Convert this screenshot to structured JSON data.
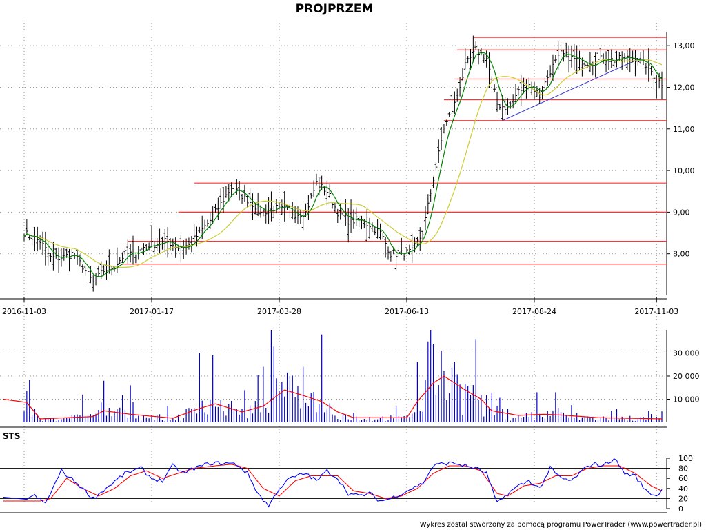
{
  "title": "PROJPRZEM",
  "footer": "Wykres został stworzony za pomocą programu PowerTrader (www.powertrader.pl)",
  "colors": {
    "bars": "#000000",
    "ma_short": "#008000",
    "ma_long": "#cccc33",
    "levels": "#ff3333",
    "trendline": "#3333cc",
    "volume": "#0000cc",
    "volume_avg": "#ff0000",
    "sts_k": "#0000ff",
    "sts_d": "#ff0000"
  },
  "chart_data": [
    {
      "type": "line",
      "panel": "price",
      "ylim": [
        7.0,
        13.6
      ],
      "y_ticks": [
        "8,00",
        "9,00",
        "10,00",
        "11,00",
        "12,00",
        "13,00"
      ],
      "x_ticks": [
        "2016-11-03",
        "2017-01-17",
        "2017-03-28",
        "2017-06-13",
        "2017-08-24",
        "2017-11-03"
      ],
      "close_anchors": [
        [
          0,
          8.5
        ],
        [
          6,
          8.3
        ],
        [
          10,
          7.9
        ],
        [
          14,
          7.9
        ],
        [
          18,
          8.0
        ],
        [
          22,
          7.7
        ],
        [
          26,
          7.3
        ],
        [
          30,
          7.6
        ],
        [
          34,
          7.7
        ],
        [
          38,
          8.0
        ],
        [
          42,
          8.0
        ],
        [
          46,
          8.2
        ],
        [
          50,
          8.25
        ],
        [
          54,
          8.3
        ],
        [
          58,
          8.15
        ],
        [
          62,
          8.2
        ],
        [
          66,
          8.5
        ],
        [
          70,
          8.8
        ],
        [
          74,
          9.2
        ],
        [
          78,
          9.6
        ],
        [
          82,
          9.4
        ],
        [
          86,
          9.2
        ],
        [
          90,
          9.0
        ],
        [
          94,
          9.1
        ],
        [
          98,
          9.05
        ],
        [
          102,
          8.95
        ],
        [
          106,
          9.0
        ],
        [
          110,
          9.7
        ],
        [
          114,
          9.5
        ],
        [
          118,
          9.0
        ],
        [
          122,
          8.8
        ],
        [
          126,
          8.8
        ],
        [
          130,
          8.7
        ],
        [
          134,
          8.5
        ],
        [
          138,
          8.0
        ],
        [
          142,
          8.0
        ],
        [
          146,
          8.05
        ],
        [
          150,
          8.5
        ],
        [
          154,
          9.8
        ],
        [
          158,
          11.0
        ],
        [
          162,
          11.6
        ],
        [
          166,
          12.5
        ],
        [
          170,
          12.9
        ],
        [
          174,
          12.7
        ],
        [
          178,
          11.6
        ],
        [
          182,
          11.5
        ],
        [
          186,
          11.9
        ],
        [
          190,
          12.1
        ],
        [
          194,
          11.8
        ],
        [
          198,
          12.4
        ],
        [
          202,
          12.8
        ],
        [
          206,
          12.7
        ],
        [
          210,
          12.6
        ],
        [
          214,
          12.6
        ],
        [
          218,
          12.7
        ],
        [
          222,
          12.65
        ],
        [
          226,
          12.7
        ],
        [
          230,
          12.7
        ],
        [
          234,
          12.55
        ],
        [
          238,
          12.2
        ],
        [
          240,
          12.1
        ]
      ],
      "ma_short_period": 5,
      "ma_long_period": 20,
      "support_resistance": [
        {
          "value": 13.2,
          "from_bar": 169
        },
        {
          "value": 12.9,
          "from_bar": 163
        },
        {
          "value": 12.2,
          "from_bar": 162
        },
        {
          "value": 11.7,
          "from_bar": 158
        },
        {
          "value": 11.2,
          "from_bar": 158
        },
        {
          "value": 9.7,
          "from_bar": 64
        },
        {
          "value": 9.0,
          "from_bar": 58
        },
        {
          "value": 8.3,
          "from_bar": 39
        },
        {
          "value": 7.75,
          "from_bar": 37
        }
      ],
      "trendline": [
        [
          180,
          11.2
        ],
        [
          232,
          12.7
        ]
      ]
    },
    {
      "type": "bar",
      "panel": "volume",
      "ylim": [
        0,
        40000
      ],
      "y_ticks": [
        "10 000",
        "20 000",
        "30 000"
      ],
      "y_tick_values": [
        10000,
        20000,
        30000
      ],
      "spikes": [
        [
          22,
          12000
        ],
        [
          30,
          18000
        ],
        [
          40,
          16000
        ],
        [
          66,
          30000
        ],
        [
          71,
          29000
        ],
        [
          90,
          24000
        ],
        [
          93,
          40000
        ],
        [
          95,
          19000
        ],
        [
          100,
          20000
        ],
        [
          105,
          24000
        ],
        [
          112,
          38000
        ],
        [
          148,
          26000
        ],
        [
          152,
          35000
        ],
        [
          154,
          34000
        ],
        [
          157,
          31000
        ],
        [
          162,
          26000
        ],
        [
          170,
          36000
        ],
        [
          193,
          13000
        ],
        [
          200,
          13000
        ]
      ],
      "avg_anchors": [
        [
          0,
          10000
        ],
        [
          6,
          1500
        ],
        [
          26,
          2500
        ],
        [
          30,
          5000
        ],
        [
          40,
          3500
        ],
        [
          56,
          1800
        ],
        [
          66,
          6000
        ],
        [
          72,
          8000
        ],
        [
          82,
          4500
        ],
        [
          90,
          7000
        ],
        [
          98,
          14000
        ],
        [
          104,
          12000
        ],
        [
          112,
          9000
        ],
        [
          118,
          4500
        ],
        [
          124,
          2000
        ],
        [
          144,
          2000
        ],
        [
          148,
          9000
        ],
        [
          154,
          17000
        ],
        [
          158,
          20000
        ],
        [
          166,
          14000
        ],
        [
          172,
          10000
        ],
        [
          176,
          5000
        ],
        [
          186,
          3000
        ],
        [
          196,
          3500
        ],
        [
          204,
          3000
        ],
        [
          216,
          2000
        ],
        [
          240,
          1500
        ]
      ]
    },
    {
      "type": "line",
      "panel": "STS",
      "title": "STS",
      "ylim": [
        0,
        100
      ],
      "y_ticks": [
        "0",
        "20",
        "40",
        "60",
        "80",
        "100"
      ],
      "y_tick_values": [
        0,
        20,
        40,
        60,
        80,
        100
      ],
      "levels": [
        20,
        80
      ],
      "k_anchors": [
        [
          0,
          20
        ],
        [
          4,
          25
        ],
        [
          8,
          10
        ],
        [
          14,
          75
        ],
        [
          20,
          50
        ],
        [
          26,
          20
        ],
        [
          32,
          45
        ],
        [
          38,
          70
        ],
        [
          44,
          80
        ],
        [
          48,
          60
        ],
        [
          52,
          55
        ],
        [
          56,
          85
        ],
        [
          60,
          70
        ],
        [
          64,
          80
        ],
        [
          70,
          90
        ],
        [
          76,
          90
        ],
        [
          80,
          88
        ],
        [
          84,
          70
        ],
        [
          88,
          30
        ],
        [
          92,
          5
        ],
        [
          96,
          40
        ],
        [
          100,
          60
        ],
        [
          106,
          70
        ],
        [
          110,
          55
        ],
        [
          114,
          75
        ],
        [
          118,
          60
        ],
        [
          122,
          30
        ],
        [
          126,
          25
        ],
        [
          130,
          30
        ],
        [
          134,
          15
        ],
        [
          138,
          20
        ],
        [
          142,
          30
        ],
        [
          146,
          40
        ],
        [
          150,
          50
        ],
        [
          154,
          85
        ],
        [
          158,
          90
        ],
        [
          162,
          90
        ],
        [
          166,
          85
        ],
        [
          170,
          80
        ],
        [
          174,
          70
        ],
        [
          178,
          10
        ],
        [
          182,
          30
        ],
        [
          186,
          45
        ],
        [
          190,
          55
        ],
        [
          194,
          40
        ],
        [
          198,
          80
        ],
        [
          202,
          60
        ],
        [
          206,
          55
        ],
        [
          210,
          75
        ],
        [
          214,
          90
        ],
        [
          218,
          85
        ],
        [
          222,
          100
        ],
        [
          226,
          70
        ],
        [
          230,
          65
        ],
        [
          234,
          35
        ],
        [
          238,
          25
        ],
        [
          240,
          38
        ]
      ],
      "d_anchors": [
        [
          0,
          15
        ],
        [
          6,
          15
        ],
        [
          10,
          20
        ],
        [
          16,
          60
        ],
        [
          22,
          40
        ],
        [
          28,
          25
        ],
        [
          34,
          40
        ],
        [
          40,
          65
        ],
        [
          46,
          75
        ],
        [
          52,
          60
        ],
        [
          58,
          70
        ],
        [
          64,
          80
        ],
        [
          72,
          85
        ],
        [
          78,
          88
        ],
        [
          84,
          80
        ],
        [
          90,
          40
        ],
        [
          96,
          25
        ],
        [
          102,
          55
        ],
        [
          108,
          65
        ],
        [
          112,
          65
        ],
        [
          118,
          65
        ],
        [
          124,
          35
        ],
        [
          130,
          30
        ],
        [
          136,
          20
        ],
        [
          142,
          25
        ],
        [
          148,
          40
        ],
        [
          154,
          70
        ],
        [
          160,
          85
        ],
        [
          166,
          85
        ],
        [
          172,
          75
        ],
        [
          178,
          30
        ],
        [
          182,
          25
        ],
        [
          188,
          45
        ],
        [
          194,
          50
        ],
        [
          200,
          65
        ],
        [
          206,
          65
        ],
        [
          212,
          80
        ],
        [
          218,
          85
        ],
        [
          224,
          85
        ],
        [
          230,
          70
        ],
        [
          236,
          45
        ],
        [
          240,
          35
        ]
      ]
    }
  ]
}
